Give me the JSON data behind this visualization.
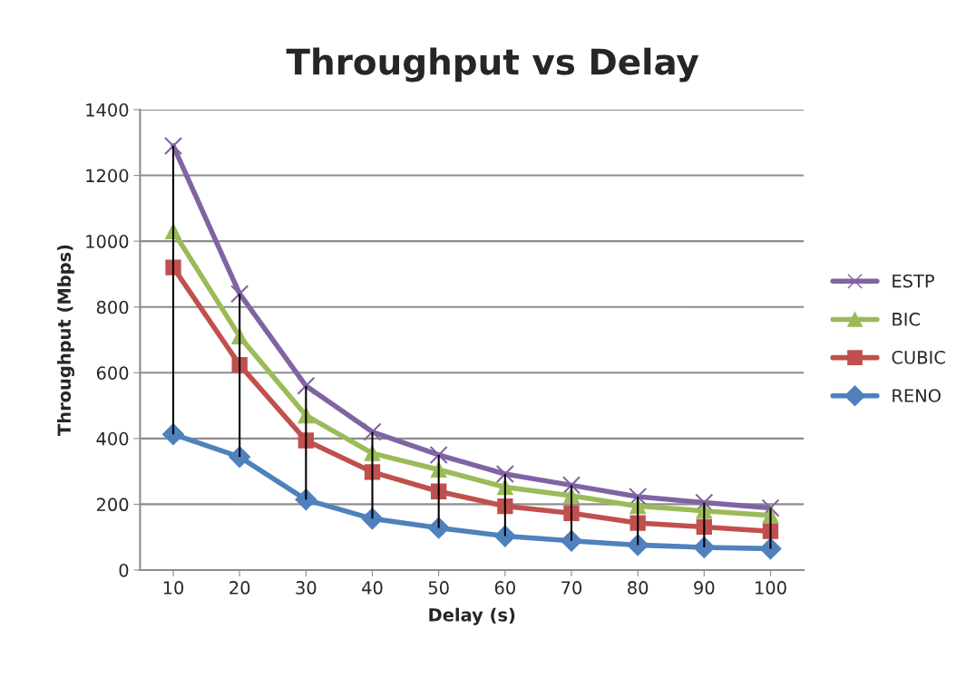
{
  "chart_data": {
    "type": "line",
    "title": "Throughput vs Delay",
    "xlabel": "Delay (s)",
    "ylabel": "Throughput (Mbps)",
    "categories": [
      "10",
      "20",
      "30",
      "40",
      "50",
      "60",
      "70",
      "80",
      "90",
      "100"
    ],
    "series": [
      {
        "name": "ESTP",
        "color": "#8064a2",
        "marker": "cross",
        "values": [
          1290,
          840,
          560,
          420,
          350,
          292,
          258,
          223,
          205,
          189
        ]
      },
      {
        "name": "BIC",
        "color": "#9bbb59",
        "marker": "triangle",
        "values": [
          1030,
          710,
          470,
          355,
          305,
          252,
          226,
          194,
          180,
          166
        ]
      },
      {
        "name": "CUBIC",
        "color": "#c0504d",
        "marker": "square",
        "values": [
          920,
          624,
          394,
          298,
          239,
          194,
          173,
          143,
          131,
          118
        ]
      },
      {
        "name": "RENO",
        "color": "#4f81bd",
        "marker": "diamond",
        "values": [
          413,
          344,
          214,
          156,
          128,
          103,
          89,
          76,
          69,
          65
        ],
        "errors": [
          [
            413,
            1290
          ],
          [
            344,
            840
          ],
          [
            214,
            560
          ],
          [
            156,
            420
          ],
          [
            128,
            350
          ],
          [
            103,
            292
          ],
          [
            89,
            258
          ],
          [
            76,
            223
          ],
          [
            69,
            205
          ],
          [
            65,
            189
          ]
        ]
      }
    ],
    "ylim": [
      0,
      1400
    ],
    "yticks": [
      0,
      200,
      400,
      600,
      800,
      1000,
      1200,
      1400
    ],
    "grid": "y",
    "legend": "right"
  }
}
